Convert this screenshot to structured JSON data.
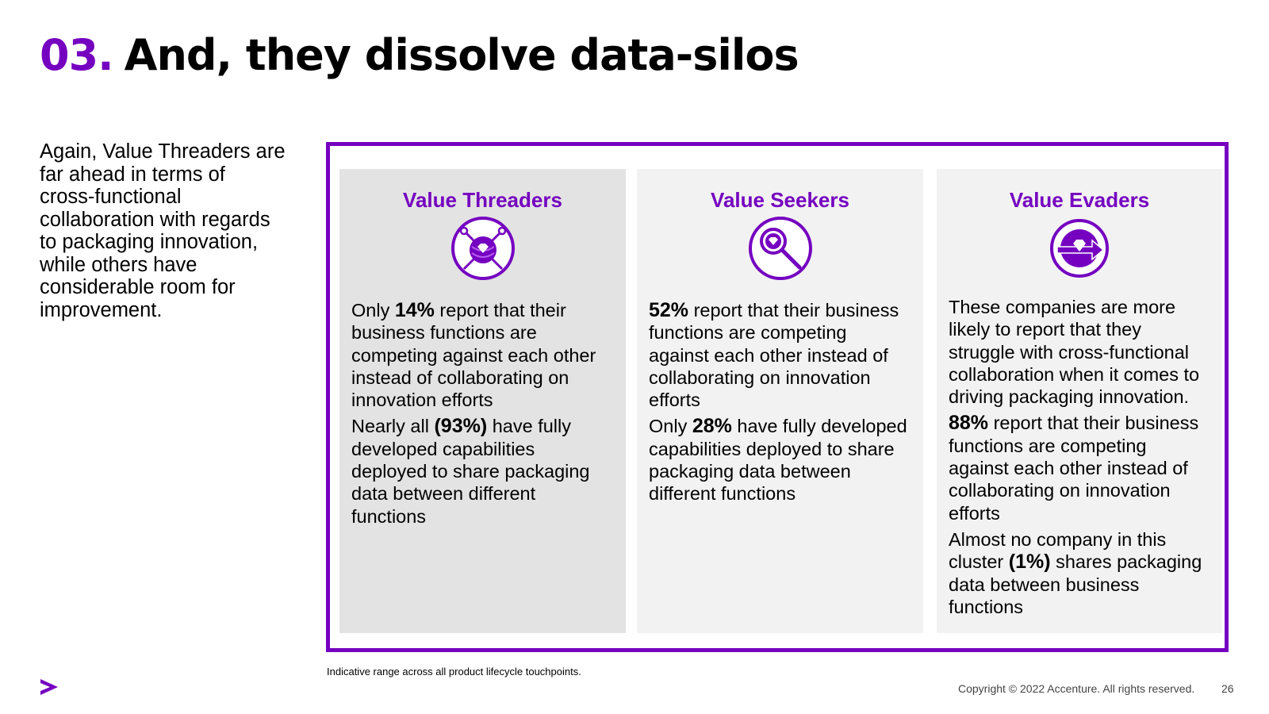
{
  "title": {
    "number": "03.",
    "text": "And, they dissolve data-silos"
  },
  "intro": "Again, Value Threaders are far ahead in terms of cross-functional collaboration with regards to packaging innovation, while others have considerable room for improvement.",
  "cards": [
    {
      "heading": "Value Threaders",
      "icon": "yarn-ball-diamond-icon",
      "p1": {
        "pre": "Only ",
        "stat": "14%",
        "post": " report that their business functions are competing against each other instead of collaborating on innovation efforts"
      },
      "p2": {
        "pre": "Nearly all ",
        "stat": "(93%)",
        "post": " have fully developed capabilities deployed to share packaging data between different functions"
      }
    },
    {
      "heading": "Value Seekers",
      "icon": "magnifier-diamond-icon",
      "p1": {
        "pre": "",
        "stat": "52%",
        "post": " report that their business functions are competing against each other instead of collaborating on innovation efforts"
      },
      "p2": {
        "pre": "Only ",
        "stat": "28%",
        "post": " have fully developed capabilities deployed to share packaging data between different functions"
      }
    },
    {
      "heading": "Value Evaders",
      "icon": "evade-arrow-diamond-icon",
      "p0": "These companies are more likely to report that they struggle with cross-functional collaboration when it comes to driving packaging innovation.",
      "p1": {
        "pre": "",
        "stat": "88%",
        "post": " report that their business functions are competing against each other instead of collaborating on innovation efforts"
      },
      "p2": {
        "pre": "Almost no company in this cluster ",
        "stat": "(1%)",
        "post": " shares packaging data between business functions"
      }
    }
  ],
  "footnote": "Indicative range across all product lifecycle touchpoints.",
  "copyright": "Copyright © 2022 Accenture. All rights reserved.",
  "page_number": "26",
  "colors": {
    "accent": "#7500c0",
    "card_dark": "#e3e3e3",
    "card_light": "#f2f2f2"
  },
  "logo": "accenture-chevron-logo"
}
